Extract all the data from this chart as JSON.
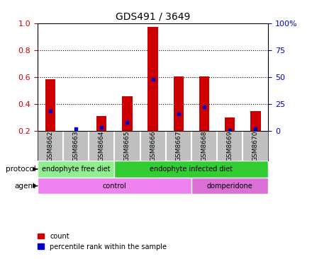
{
  "title": "GDS491 / 3649",
  "samples": [
    "GSM8662",
    "GSM8663",
    "GSM8664",
    "GSM8665",
    "GSM8666",
    "GSM8667",
    "GSM8668",
    "GSM8669",
    "GSM8670"
  ],
  "red_values": [
    0.585,
    0.2,
    0.31,
    0.455,
    0.975,
    0.605,
    0.605,
    0.3,
    0.345
  ],
  "blue_values": [
    0.345,
    0.215,
    0.225,
    0.26,
    0.585,
    0.325,
    0.375,
    0.205,
    0.215
  ],
  "ylim": [
    0.2,
    1.0
  ],
  "yticks_left": [
    0.2,
    0.4,
    0.6,
    0.8,
    1.0
  ],
  "yticks_right": [
    0,
    25,
    50,
    75,
    100
  ],
  "protocol_groups": [
    {
      "label": "endophyte free diet",
      "start": 0,
      "end": 3,
      "color": "#90EE90"
    },
    {
      "label": "endophyte infected diet",
      "start": 3,
      "end": 9,
      "color": "#32CD32"
    }
  ],
  "agent_groups": [
    {
      "label": "control",
      "start": 0,
      "end": 6,
      "color": "#EE82EE"
    },
    {
      "label": "domperidone",
      "start": 6,
      "end": 9,
      "color": "#DA70D6"
    }
  ],
  "bar_color": "#CC0000",
  "dot_color": "#0000CC",
  "tick_color_left": "#CC0000",
  "tick_color_right": "#0000CC",
  "bg_color": "#FFFFFF",
  "sample_bg": "#C0C0C0",
  "bar_width": 0.4,
  "legend_count_label": "count",
  "legend_pct_label": "percentile rank within the sample"
}
